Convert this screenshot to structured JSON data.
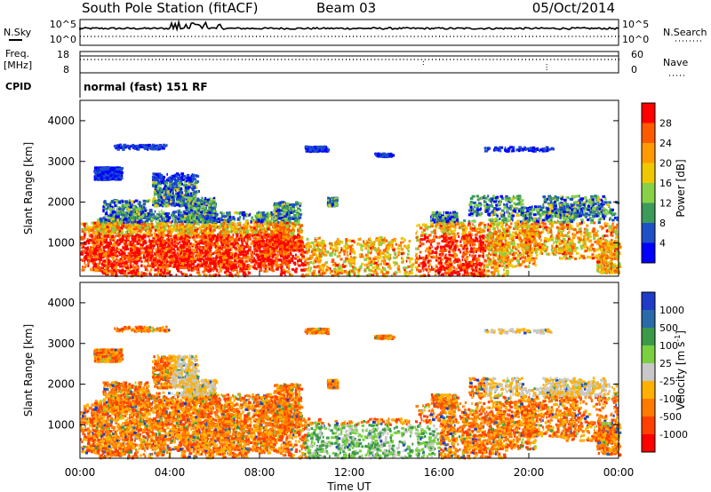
{
  "header": {
    "station": "South Pole Station (fitACF)",
    "beam": "Beam 03",
    "date": "05/Oct/2014"
  },
  "strip_labels": {
    "nsky": "N.Sky",
    "nsearch": "N.Search",
    "freq_top": "Freq.",
    "freq_unit": "[MHz]",
    "nave": "Nave",
    "cpid": "CPID",
    "cpid_value": "normal (fast) 151 RF",
    "noise_ticks_left": [
      "10^5",
      "10^0"
    ],
    "noise_ticks_right": [
      "10^5",
      "10^0"
    ],
    "freq_ticks": [
      "18",
      "8"
    ],
    "nave_ticks": [
      "60",
      "0"
    ]
  },
  "chart_data": [
    {
      "type": "heatmap",
      "name": "power",
      "ylabel": "Slant Range [km]",
      "ylim": [
        180,
        4500
      ],
      "yticks": [
        1000,
        2000,
        3000,
        4000
      ],
      "xlim_hours": [
        0,
        24
      ],
      "colorbar": {
        "label": "Power [dB]",
        "ticks": [
          "28",
          "24",
          "20",
          "16",
          "12",
          "8",
          "4"
        ],
        "colors": [
          "#ff0000",
          "#ff5a00",
          "#ff9a00",
          "#f0c800",
          "#88d048",
          "#3c9a5a",
          "#1e50c8",
          "#0000ff"
        ]
      }
    },
    {
      "type": "heatmap",
      "name": "velocity",
      "ylabel": "Slant Range [km]",
      "ylim": [
        180,
        4500
      ],
      "yticks": [
        1000,
        2000,
        3000,
        4000
      ],
      "xlim_hours": [
        0,
        24
      ],
      "xlabel": "Time UT",
      "xticks": [
        "00:00",
        "04:00",
        "08:00",
        "12:00",
        "16:00",
        "20:00",
        "00:00"
      ],
      "colorbar": {
        "label": "Velocity [m s",
        "label_sup": "-1",
        "label_close": "]",
        "ticks": [
          "1000",
          "500",
          "100",
          "25",
          "-25",
          "-100",
          "-500",
          "-1000"
        ],
        "colors": [
          "#1e3cc8",
          "#2a6aa8",
          "#3a9a4a",
          "#7ad040",
          "#c8c8c8",
          "#ffb000",
          "#ff7a00",
          "#ff4000",
          "#ff0000"
        ]
      }
    }
  ]
}
